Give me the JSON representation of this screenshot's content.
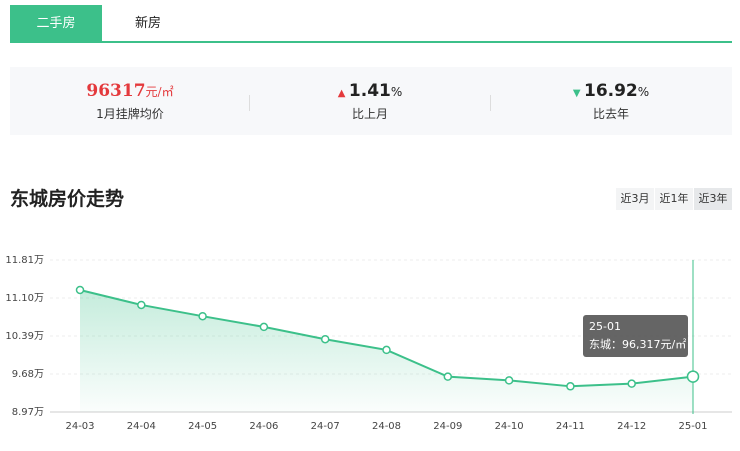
{
  "tabs": [
    "二手房",
    "新房"
  ],
  "stats": [
    {
      "value": 96317,
      "unit": "元/㎡",
      "label": "1月挂牌均价"
    },
    {
      "value": 1.41,
      "unit": "%",
      "label": "比上月"
    },
    {
      "value": 16.92,
      "unit": "%",
      "label": "比去年"
    }
  ],
  "section_title": "东城房价走势",
  "ranges": [
    "近3月",
    "近1年",
    "近3年"
  ],
  "chart_data": {
    "type": "area-line",
    "categories": [
      "24-03",
      "24-04",
      "24-05",
      "24-06",
      "24-07",
      "24-08",
      "24-09",
      "24-10",
      "24-11",
      "24-12",
      "25-01"
    ],
    "series": [
      {
        "name": "东城",
        "color": "#3cc08a",
        "values": [
          11.25,
          10.97,
          10.76,
          10.56,
          10.33,
          10.13,
          9.63,
          9.56,
          9.45,
          9.5,
          9.6317
        ]
      }
    ],
    "ylim": [
      8.97,
      11.81
    ],
    "yticks": [
      {
        "value": 8.97,
        "label": "8.97万"
      },
      {
        "value": 9.68,
        "label": "9.68万"
      },
      {
        "value": 10.39,
        "label": "10.39万"
      },
      {
        "value": 11.1,
        "label": "11.10万"
      },
      {
        "value": 11.81,
        "label": "11.81万"
      }
    ],
    "grid": true,
    "tooltip": {
      "title": "25-01",
      "text": "东城：96,317元/㎡"
    }
  }
}
